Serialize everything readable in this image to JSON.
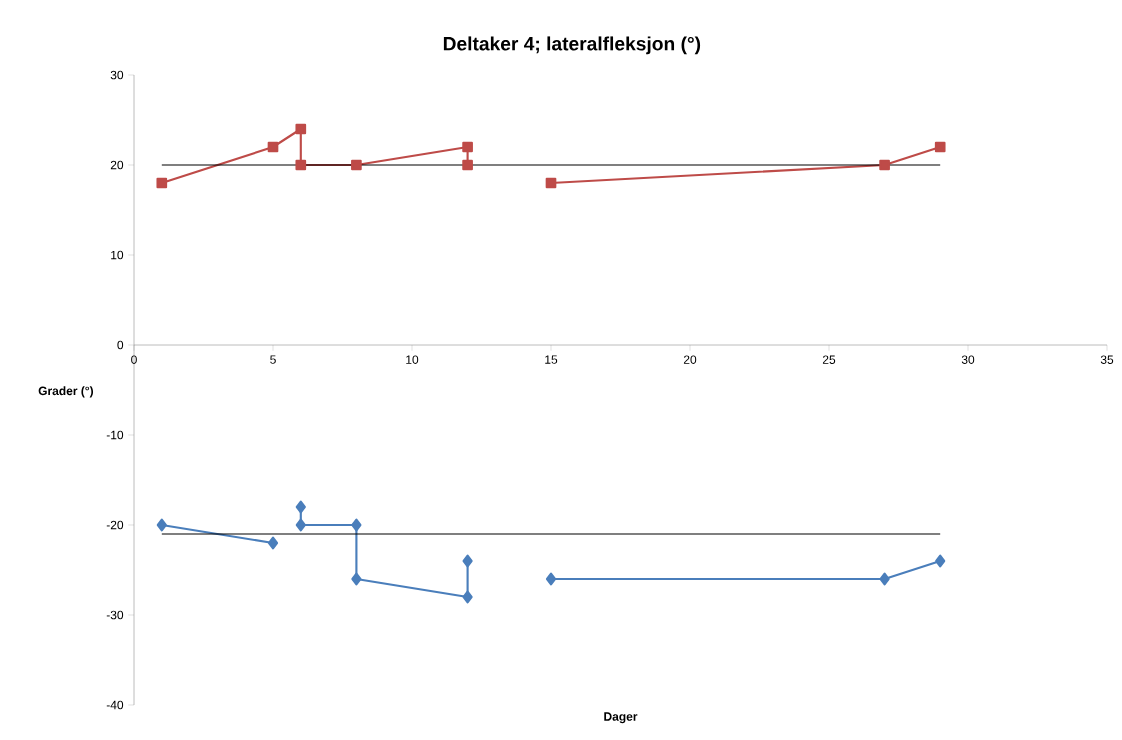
{
  "chart_data": {
    "type": "line",
    "title": "Deltaker 4; lateralfleksjon (°)",
    "xlabel": "Dager",
    "ylabel": "Grader (°)",
    "xlim": [
      0,
      35
    ],
    "xticks": [
      0,
      5,
      10,
      15,
      20,
      25,
      30,
      35
    ],
    "ylim": [
      -40,
      30
    ],
    "yticks": [
      -40,
      -30,
      -20,
      -10,
      0,
      10,
      20,
      30
    ],
    "grid": false,
    "line_style": "solid",
    "series": [
      {
        "color": "#be4b48",
        "marker": "square",
        "x": [
          1,
          5,
          6,
          6,
          8,
          12,
          12,
          null,
          15,
          27,
          29
        ],
        "values": [
          18,
          22,
          24,
          20,
          20,
          22,
          20,
          null,
          18,
          20,
          22
        ]
      },
      {
        "color": "#4a7ebb",
        "marker": "diamond",
        "x": [
          1,
          5,
          null,
          6,
          6,
          8,
          8,
          12,
          12,
          null,
          15,
          27,
          29
        ],
        "values": [
          -20,
          -22,
          null,
          -18,
          -20,
          -20,
          -26,
          -28,
          -24,
          null,
          -26,
          -26,
          -24
        ]
      },
      {
        "color": "#000000",
        "marker": "none",
        "x": [
          1,
          29
        ],
        "values": [
          20,
          20
        ]
      },
      {
        "color": "#000000",
        "marker": "none",
        "x": [
          1,
          29
        ],
        "values": [
          -21,
          -21
        ]
      }
    ]
  }
}
